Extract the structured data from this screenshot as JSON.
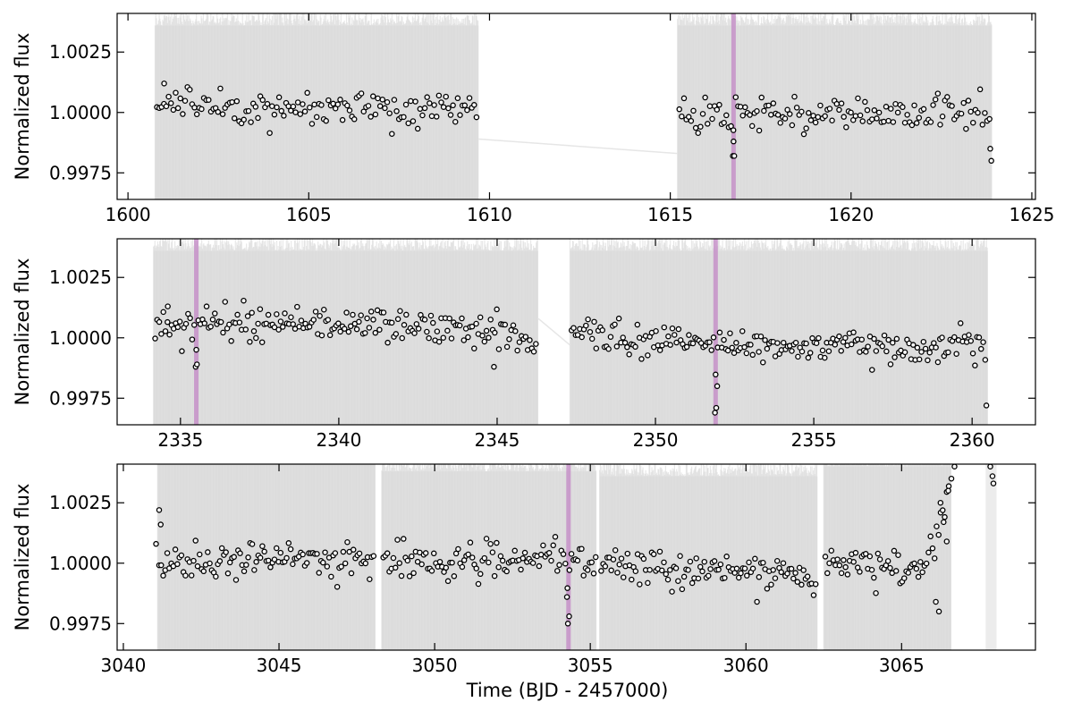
{
  "chart_data": [
    {
      "type": "scatter",
      "panel": "sector-1",
      "title": "",
      "xlabel": "",
      "ylabel": "Normalized flux",
      "xlim": [
        1599.7,
        1625.1
      ],
      "ylim": [
        0.9964,
        1.0041
      ],
      "x_ticks": [
        1600,
        1605,
        1610,
        1615,
        1620,
        1625
      ],
      "x_tick_labels": [
        "1600",
        "1605",
        "1610",
        "1615",
        "1620",
        "1625"
      ],
      "y_ticks": [
        0.9975,
        1.0,
        1.0025
      ],
      "y_tick_labels": [
        "0.9975",
        "1.0000",
        "1.0025"
      ],
      "grid": false,
      "raw_flux_color": "#d9d9d9",
      "binned_color": "#000000",
      "transit_color": "#c590c8",
      "segments": [
        {
          "x_start": 1600.75,
          "x_end": 1609.7,
          "band_low": 0.99635,
          "band_high": 1.0036,
          "levels": [
            [
              1600.75,
              1.0006
            ],
            [
              1602.0,
              1.0003
            ],
            [
              1604.0,
              1.0001
            ],
            [
              1606.0,
              1.0002
            ],
            [
              1608.0,
              1.0001
            ],
            [
              1609.7,
              1.0002
            ]
          ]
        },
        {
          "x_start": 1615.2,
          "x_end": 1623.9,
          "band_low": 0.99635,
          "band_high": 1.0036,
          "levels": [
            [
              1615.2,
              0.9998
            ],
            [
              1617.0,
              1.0
            ],
            [
              1619.0,
              0.9999
            ],
            [
              1621.0,
              0.9999
            ],
            [
              1623.0,
              1.0
            ],
            [
              1623.9,
              0.9998
            ]
          ]
        }
      ],
      "gap_lines": [
        [
          1609.7,
          0.9989,
          1615.2,
          0.9983
        ]
      ],
      "transits": [
        1616.75
      ],
      "transit_depth": 0.002,
      "extra_points": [
        [
          1616.73,
          0.9982
        ],
        [
          1616.77,
          0.9982
        ],
        [
          1616.75,
          0.9988
        ],
        [
          1623.85,
          0.9985
        ],
        [
          1623.88,
          0.998
        ],
        [
          1601.0,
          1.0012
        ]
      ]
    },
    {
      "type": "scatter",
      "panel": "sector-2",
      "title": "",
      "xlabel": "",
      "ylabel": "Normalized flux",
      "xlim": [
        2333.0,
        2362.0
      ],
      "ylim": [
        0.9964,
        1.0041
      ],
      "x_ticks": [
        2335,
        2340,
        2345,
        2350,
        2355,
        2360
      ],
      "x_tick_labels": [
        "2335",
        "2340",
        "2345",
        "2350",
        "2355",
        "2360"
      ],
      "y_ticks": [
        0.9975,
        1.0,
        1.0025
      ],
      "y_tick_labels": [
        "0.9975",
        "1.0000",
        "1.0025"
      ],
      "grid": false,
      "raw_flux_color": "#d9d9d9",
      "binned_color": "#000000",
      "transit_color": "#c590c8",
      "segments": [
        {
          "x_start": 2334.15,
          "x_end": 2346.3,
          "band_low": 0.99635,
          "band_high": 1.0036,
          "levels": [
            [
              2334.15,
              1.0004
            ],
            [
              2336.0,
              1.0006
            ],
            [
              2338.0,
              1.0007
            ],
            [
              2340.0,
              1.0006
            ],
            [
              2342.0,
              1.0005
            ],
            [
              2344.0,
              1.0003
            ],
            [
              2346.3,
              1.0
            ]
          ]
        },
        {
          "x_start": 2347.3,
          "x_end": 2360.5,
          "band_low": 0.99635,
          "band_high": 1.0036,
          "levels": [
            [
              2347.3,
              1.0003
            ],
            [
              2349.0,
              1.0
            ],
            [
              2351.0,
              0.9998
            ],
            [
              2353.0,
              0.9997
            ],
            [
              2355.0,
              0.9996
            ],
            [
              2357.0,
              0.9996
            ],
            [
              2359.0,
              0.9997
            ],
            [
              2360.5,
              0.9998
            ]
          ]
        }
      ],
      "gap_lines": [
        [
          2346.3,
          1.0008,
          2347.3,
          0.9997
        ]
      ],
      "transits": [
        2335.5,
        2351.9
      ],
      "transit_depth": 0.0019,
      "extra_points": [
        [
          2335.48,
          0.9988
        ],
        [
          2335.52,
          0.9989
        ],
        [
          2351.88,
          0.9969
        ],
        [
          2351.92,
          0.9971
        ],
        [
          2351.95,
          0.998
        ],
        [
          2360.45,
          0.9972
        ],
        [
          2334.6,
          1.0013
        ],
        [
          2344.9,
          0.9988
        ]
      ]
    },
    {
      "type": "scatter",
      "panel": "sector-3",
      "title": "",
      "xlabel": "Time (BJD - 2457000)",
      "ylabel": "Normalized flux",
      "xlim": [
        3039.8,
        3069.3
      ],
      "ylim": [
        0.9964,
        1.0041
      ],
      "x_ticks": [
        3040,
        3045,
        3050,
        3055,
        3060,
        3065
      ],
      "x_tick_labels": [
        "3040",
        "3045",
        "3050",
        "3055",
        "3060",
        "3065"
      ],
      "y_ticks": [
        0.9975,
        1.0,
        1.0025
      ],
      "y_tick_labels": [
        "0.9975",
        "1.0000",
        "1.0025"
      ],
      "grid": false,
      "raw_flux_color": "#d9d9d9",
      "binned_color": "#000000",
      "transit_color": "#c590c8",
      "segments": [
        {
          "x_start": 3041.1,
          "x_end": 3048.1,
          "band_low": 0.99635,
          "band_high": 1.0041,
          "levels": [
            [
              3041.1,
              1.0001
            ],
            [
              3043.0,
              1.0
            ],
            [
              3045.0,
              1.0002
            ],
            [
              3047.0,
              1.0001
            ],
            [
              3048.1,
              1.0001
            ]
          ]
        },
        {
          "x_start": 3048.3,
          "x_end": 3055.2,
          "band_low": 0.99635,
          "band_high": 1.0038,
          "levels": [
            [
              3048.3,
              1.0003
            ],
            [
              3050.0,
              1.0
            ],
            [
              3052.0,
              1.0001
            ],
            [
              3054.0,
              1.0001
            ],
            [
              3055.2,
              1.0
            ]
          ]
        },
        {
          "x_start": 3055.3,
          "x_end": 3062.3,
          "band_low": 0.99635,
          "band_high": 1.0036,
          "levels": [
            [
              3055.3,
              0.9999
            ],
            [
              3057.0,
              0.9998
            ],
            [
              3059.0,
              0.9998
            ],
            [
              3061.0,
              0.9995
            ],
            [
              3062.3,
              0.9993
            ]
          ]
        },
        {
          "x_start": 3062.5,
          "x_end": 3066.6,
          "band_low": 0.99635,
          "band_high": 1.004,
          "levels": [
            [
              3062.5,
              1.0001
            ],
            [
              3064.0,
              0.9998
            ],
            [
              3065.5,
              0.9999
            ],
            [
              3066.0,
              1.0003
            ],
            [
              3066.6,
              1.0035
            ]
          ]
        }
      ],
      "gap_lines": [],
      "transits": [
        3054.3
      ],
      "transit_depth": 0.0026,
      "extra_points": [
        [
          3041.15,
          1.0022
        ],
        [
          3041.2,
          1.0016
        ],
        [
          3041.05,
          1.0008
        ],
        [
          3054.28,
          0.9975
        ],
        [
          3054.32,
          0.9978
        ],
        [
          3054.25,
          0.9986
        ],
        [
          3066.1,
          0.9984
        ],
        [
          3066.2,
          0.998
        ],
        [
          3066.25,
          1.0025
        ],
        [
          3066.35,
          1.0017
        ],
        [
          3066.45,
          1.0009
        ],
        [
          3066.5,
          1.003
        ],
        [
          3066.6,
          1.0035
        ],
        [
          3066.7,
          1.004
        ],
        [
          3067.85,
          1.004
        ],
        [
          3067.95,
          1.0033
        ],
        [
          3067.92,
          1.0036
        ]
      ],
      "tail_band": [
        3067.7,
        3068.05
      ]
    }
  ]
}
